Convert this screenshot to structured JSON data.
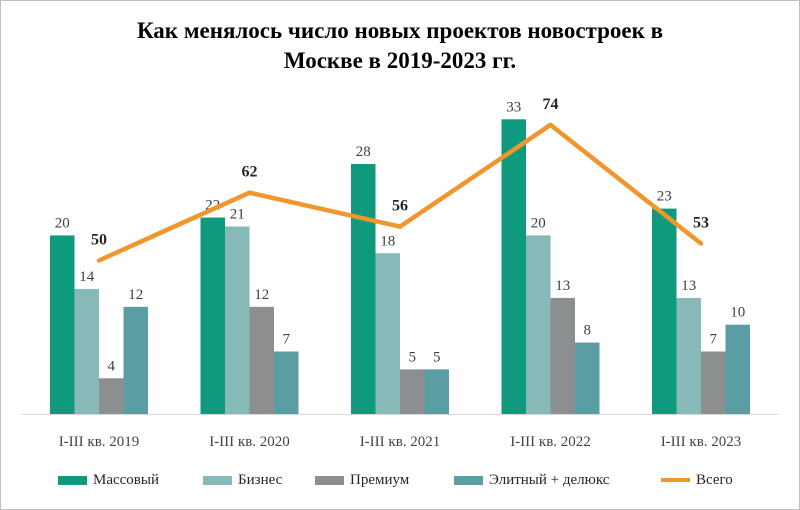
{
  "chart_data": {
    "type": "bar",
    "title_lines": [
      "Как менялось число новых проектов новостроек  в",
      "Москве в 2019-2023 гг."
    ],
    "categories": [
      "I-III кв. 2019",
      "I-III кв. 2020",
      "I-III кв. 2021",
      "I-III кв. 2022",
      "I-III кв. 2023"
    ],
    "series": [
      {
        "name": "Массовый",
        "color": "#0f9a7e",
        "values": [
          20,
          22,
          28,
          33,
          23
        ]
      },
      {
        "name": "Бизнес",
        "color": "#86b9b8",
        "values": [
          14,
          21,
          18,
          20,
          13
        ]
      },
      {
        "name": "Премиум",
        "color": "#8c8e90",
        "values": [
          4,
          12,
          5,
          13,
          7
        ]
      },
      {
        "name": "Элитный + делюкс",
        "color": "#5a9ea3",
        "values": [
          12,
          7,
          5,
          8,
          10
        ]
      }
    ],
    "line_series": {
      "name": "Всего",
      "color": "#f0962c",
      "values": [
        50,
        62,
        56,
        74,
        53
      ]
    },
    "grid": false,
    "legend_position": "bottom"
  }
}
